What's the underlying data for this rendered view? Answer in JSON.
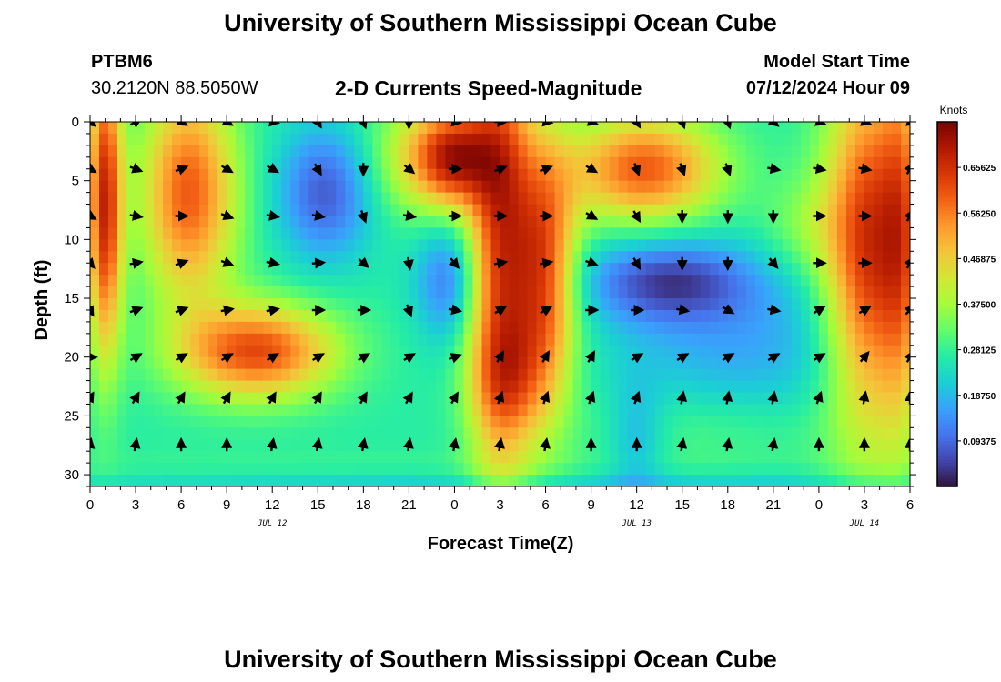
{
  "header": {
    "title": "University of Southern Mississippi Ocean Cube",
    "station_id": "PTBM6",
    "coordinates": "30.2120N  88.5050W",
    "subtitle": "2-D Currents Speed-Magnitude",
    "model_start_label": "Model Start Time",
    "model_start_value": "07/12/2024 Hour 09"
  },
  "footer": {
    "title": "University of Southern Mississippi Ocean Cube"
  },
  "chart_data": {
    "type": "heatmap",
    "xlabel": "Forecast Time(Z)",
    "ylabel": "Depth (ft)",
    "x_tick_labels": [
      "0",
      "3",
      "6",
      "9",
      "12",
      "15",
      "18",
      "21",
      "0",
      "3",
      "6",
      "9",
      "12",
      "15",
      "18",
      "21",
      "0",
      "3",
      "6"
    ],
    "x_range_hours": [
      0,
      54
    ],
    "date_labels": [
      {
        "label": "JUL 12",
        "hour": 12
      },
      {
        "label": "JUL 13",
        "hour": 36
      },
      {
        "label": "JUL 14",
        "hour": 51
      }
    ],
    "y_ticks": [
      0,
      5,
      10,
      15,
      20,
      25,
      30
    ],
    "y_range": [
      0,
      31
    ],
    "y_inverted": true,
    "colorbar": {
      "unit_label": "Knots",
      "range": [
        0,
        0.75
      ],
      "tick_values": [
        0.65625,
        0.5625,
        0.46875,
        0.375,
        0.28125,
        0.1875,
        0.09375
      ],
      "tick_labels": [
        "0.65625",
        "0.56250",
        "0.46875",
        "0.37500",
        "0.28125",
        "0.18750",
        "0.09375"
      ]
    },
    "colors": {
      "scale": [
        "#30123b",
        "#4145ab",
        "#4675ed",
        "#39a2fc",
        "#1bcfd4",
        "#24eca6",
        "#61fc6c",
        "#a4fc3b",
        "#d1e834",
        "#f3c63a",
        "#fe9b2d",
        "#f36315",
        "#d93806",
        "#b11901",
        "#7a0403"
      ]
    },
    "speed_field": {
      "base": 0.27,
      "features": [
        {
          "t": 1,
          "d": 7,
          "st": 0.8,
          "sd": 9,
          "v": 0.4
        },
        {
          "t": 6.5,
          "d": 6,
          "st": 2.2,
          "sd": 6.5,
          "v": 0.33
        },
        {
          "t": 11,
          "d": 19.5,
          "st": 3.6,
          "sd": 2.8,
          "v": 0.35
        },
        {
          "t": 15.5,
          "d": 6,
          "st": 2.2,
          "sd": 4,
          "v": -0.19
        },
        {
          "t": 21.5,
          "d": 3,
          "st": 2.4,
          "sd": 3.5,
          "v": 0.14
        },
        {
          "t": 24,
          "d": 3,
          "st": 1.8,
          "sd": 3,
          "v": 0.34
        },
        {
          "t": 23.5,
          "d": 13.5,
          "st": 1.5,
          "sd": 3.5,
          "v": -0.15
        },
        {
          "t": 27,
          "d": 10,
          "st": 1.5,
          "sd": 14,
          "v": 0.36
        },
        {
          "t": 30,
          "d": 13,
          "st": 1.5,
          "sd": 8,
          "v": 0.34
        },
        {
          "t": 27.5,
          "d": 22,
          "st": 1.8,
          "sd": 3.5,
          "v": 0.14
        },
        {
          "t": 36.5,
          "d": 4,
          "st": 3.5,
          "sd": 3.2,
          "v": 0.33
        },
        {
          "t": 38,
          "d": 13.5,
          "st": 4,
          "sd": 2.5,
          "v": -0.2
        },
        {
          "t": 43,
          "d": 19,
          "st": 6,
          "sd": 5,
          "v": -0.1
        },
        {
          "t": 36,
          "d": 27,
          "st": 1.3,
          "sd": 3.5,
          "v": -0.09
        },
        {
          "t": 41,
          "d": 26,
          "st": 6,
          "sd": 2.5,
          "v": 0.05
        },
        {
          "t": 47,
          "d": 9,
          "st": 2,
          "sd": 3,
          "v": 0.07
        },
        {
          "t": 51.5,
          "d": 11,
          "st": 2.2,
          "sd": 11,
          "v": 0.4
        },
        {
          "t": 53.5,
          "d": 9,
          "st": 0.9,
          "sd": 12,
          "v": 0.14
        },
        {
          "t": 24,
          "d": 30,
          "st": 30,
          "sd": 1.2,
          "v": 0.05
        },
        {
          "t": 30,
          "d": 31,
          "st": 30,
          "sd": 1.2,
          "v": -0.1
        }
      ]
    },
    "vectors": {
      "hours": [
        0,
        3,
        6,
        9,
        12,
        15,
        18,
        21,
        24,
        27,
        30,
        33,
        36,
        39,
        42,
        45,
        48,
        51,
        54
      ],
      "depths_ft": [
        0,
        4,
        8,
        12,
        16,
        20,
        23.5,
        27.5
      ],
      "unit": "compass degrees, direction toward",
      "directions": [
        [
          130,
          60,
          120,
          120,
          100,
          150,
          160,
          180,
          100,
          90,
          100,
          110,
          150,
          160,
          160,
          130,
          110,
          110,
          110
        ],
        [
          120,
          110,
          70,
          120,
          120,
          150,
          180,
          130,
          90,
          70,
          70,
          120,
          160,
          160,
          160,
          100,
          100,
          100,
          30
        ],
        [
          120,
          100,
          90,
          110,
          100,
          100,
          160,
          100,
          90,
          90,
          90,
          120,
          150,
          180,
          180,
          180,
          90,
          90,
          30
        ],
        [
          140,
          80,
          70,
          110,
          100,
          85,
          130,
          170,
          140,
          80,
          80,
          110,
          150,
          180,
          180,
          140,
          90,
          90,
          30
        ],
        [
          150,
          70,
          70,
          80,
          80,
          90,
          90,
          160,
          100,
          60,
          60,
          90,
          90,
          100,
          120,
          100,
          60,
          60,
          45
        ],
        [
          90,
          60,
          60,
          60,
          60,
          60,
          60,
          60,
          70,
          30,
          30,
          30,
          60,
          60,
          60,
          60,
          60,
          40,
          30
        ],
        [
          30,
          30,
          30,
          30,
          30,
          30,
          30,
          30,
          30,
          20,
          20,
          20,
          20,
          10,
          10,
          10,
          20,
          10,
          0
        ],
        [
          10,
          10,
          0,
          0,
          10,
          10,
          10,
          10,
          10,
          10,
          10,
          0,
          0,
          10,
          10,
          10,
          0,
          0,
          0
        ]
      ]
    }
  }
}
